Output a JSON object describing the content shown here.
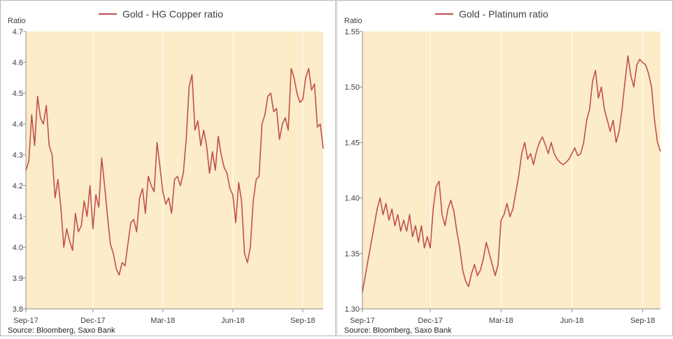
{
  "colors": {
    "plot_bg": "#fcecc8",
    "line": "#c0504d",
    "grid": "#ffffff",
    "axis": "#8c8c8c",
    "text": "#404040"
  },
  "chart_data": [
    {
      "type": "line",
      "title": "",
      "ylabel": "Ratio",
      "xlabel": "",
      "ylim": [
        3.8,
        4.7
      ],
      "yticks": [
        "4.7",
        "4.6",
        "4.5",
        "4.4",
        "4.3",
        "4.2",
        "4.1",
        "4.0",
        "3.9",
        "3.8"
      ],
      "xticks": [
        "Sep-17",
        "Dec-17",
        "Mar-18",
        "Jun-18",
        "Sep-18"
      ],
      "xtick_index": [
        0,
        23,
        47,
        71,
        95
      ],
      "grid": "vertical",
      "legend": "top-center",
      "source": "Source: Bloomberg, Saxo Bank",
      "series": [
        {
          "name": "Gold - HG Copper ratio",
          "values": [
            4.25,
            4.28,
            4.43,
            4.33,
            4.49,
            4.42,
            4.4,
            4.46,
            4.33,
            4.3,
            4.16,
            4.22,
            4.13,
            4.0,
            4.06,
            4.02,
            3.99,
            4.11,
            4.05,
            4.07,
            4.15,
            4.1,
            4.2,
            4.06,
            4.17,
            4.13,
            4.29,
            4.2,
            4.1,
            4.01,
            3.98,
            3.93,
            3.91,
            3.95,
            3.94,
            4.01,
            4.08,
            4.09,
            4.05,
            4.16,
            4.19,
            4.11,
            4.23,
            4.2,
            4.18,
            4.34,
            4.26,
            4.18,
            4.14,
            4.16,
            4.11,
            4.22,
            4.23,
            4.2,
            4.24,
            4.35,
            4.52,
            4.56,
            4.38,
            4.41,
            4.33,
            4.38,
            4.33,
            4.24,
            4.31,
            4.25,
            4.36,
            4.3,
            4.26,
            4.24,
            4.19,
            4.17,
            4.08,
            4.21,
            4.15,
            3.98,
            3.95,
            4.0,
            4.15,
            4.22,
            4.23,
            4.4,
            4.43,
            4.49,
            4.5,
            4.44,
            4.45,
            4.35,
            4.4,
            4.42,
            4.38,
            4.58,
            4.55,
            4.5,
            4.47,
            4.48,
            4.55,
            4.58,
            4.51,
            4.53,
            4.39,
            4.4,
            4.32
          ]
        }
      ]
    },
    {
      "type": "line",
      "title": "",
      "ylabel": "Ratio",
      "xlabel": "",
      "ylim": [
        1.3,
        1.55
      ],
      "yticks": [
        "1.55",
        "1.50",
        "1.45",
        "1.40",
        "1.35",
        "1.30"
      ],
      "xticks": [
        "Sep-17",
        "Dec-17",
        "Mar-18",
        "Jun-18",
        "Sep-18"
      ],
      "xtick_index": [
        0,
        23,
        47,
        71,
        95
      ],
      "grid": "vertical",
      "legend": "top-center",
      "source": "Source: Bloomberg, Saxo Bank",
      "series": [
        {
          "name": "Gold - Platinum ratio",
          "values": [
            1.315,
            1.33,
            1.345,
            1.36,
            1.375,
            1.39,
            1.4,
            1.385,
            1.395,
            1.38,
            1.39,
            1.375,
            1.385,
            1.37,
            1.38,
            1.37,
            1.385,
            1.365,
            1.375,
            1.36,
            1.375,
            1.355,
            1.365,
            1.355,
            1.39,
            1.41,
            1.415,
            1.385,
            1.375,
            1.39,
            1.398,
            1.388,
            1.37,
            1.355,
            1.335,
            1.325,
            1.32,
            1.332,
            1.34,
            1.33,
            1.335,
            1.345,
            1.36,
            1.35,
            1.34,
            1.33,
            1.34,
            1.38,
            1.385,
            1.395,
            1.383,
            1.39,
            1.405,
            1.42,
            1.44,
            1.45,
            1.435,
            1.44,
            1.43,
            1.442,
            1.45,
            1.455,
            1.448,
            1.44,
            1.45,
            1.44,
            1.435,
            1.432,
            1.43,
            1.432,
            1.435,
            1.44,
            1.445,
            1.438,
            1.44,
            1.45,
            1.47,
            1.48,
            1.505,
            1.515,
            1.49,
            1.5,
            1.48,
            1.47,
            1.46,
            1.47,
            1.45,
            1.46,
            1.48,
            1.505,
            1.528,
            1.51,
            1.5,
            1.52,
            1.525,
            1.522,
            1.52,
            1.512,
            1.5,
            1.47,
            1.45,
            1.442
          ]
        }
      ]
    }
  ]
}
